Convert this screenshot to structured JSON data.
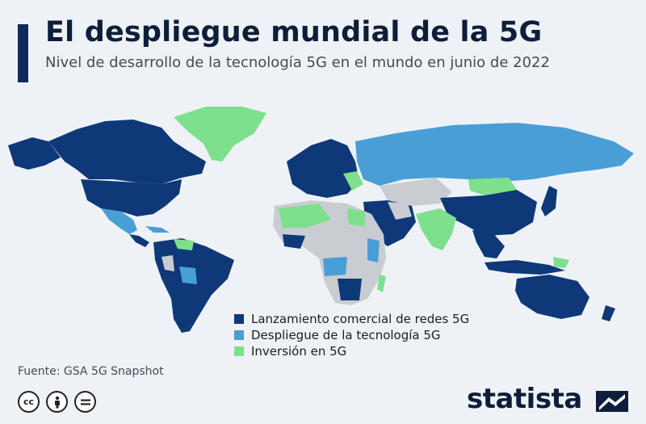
{
  "header": {
    "title": "El despliegue mundial de la 5G",
    "subtitle": "Nivel de desarrollo de la tecnología 5G en el mundo en junio de 2022"
  },
  "legend": {
    "items": [
      {
        "label": "Lanzamiento comercial de redes 5G",
        "color": "#0e3878"
      },
      {
        "label": "Despliegue de la tecnología 5G",
        "color": "#4a9ed6"
      },
      {
        "label": "Inversión en 5G",
        "color": "#7ee08c"
      }
    ]
  },
  "map_colors": {
    "no_data": "#c9ccd1",
    "background": "#eef2f6"
  },
  "footer": {
    "source": "Fuente: GSA 5G Snapshot",
    "license_icons": [
      "creative-commons-icon",
      "attribution-icon",
      "no-derivatives-icon"
    ],
    "brand": "statista"
  }
}
